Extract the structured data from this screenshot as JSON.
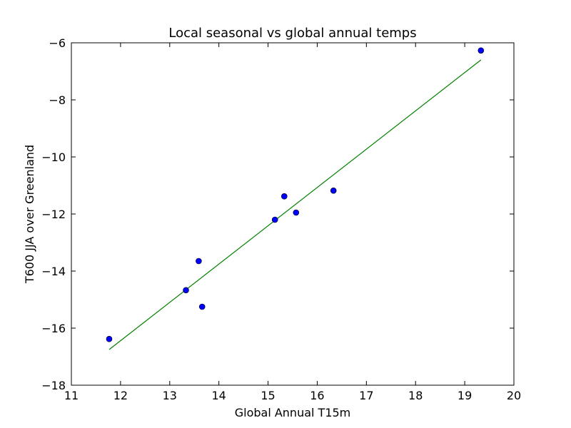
{
  "chart_data": {
    "type": "scatter",
    "title": "Local seasonal vs global annual temps",
    "xlabel": "Global Annual T15m",
    "ylabel": "T600 JJA over Greenland",
    "xlim": [
      11,
      20
    ],
    "ylim": [
      -18,
      -6
    ],
    "xticks": [
      11,
      12,
      13,
      14,
      15,
      16,
      17,
      18,
      19,
      20
    ],
    "yticks": [
      -18,
      -16,
      -14,
      -12,
      -10,
      -8,
      -6
    ],
    "xtick_labels": [
      "11",
      "12",
      "13",
      "14",
      "15",
      "16",
      "17",
      "18",
      "19",
      "20"
    ],
    "ytick_labels": [
      "−18",
      "−16",
      "−14",
      "−12",
      "−10",
      "−8",
      "−6"
    ],
    "grid": false,
    "legend": "none",
    "points": [
      {
        "x": 11.77,
        "y": -16.38
      },
      {
        "x": 13.33,
        "y": -14.67
      },
      {
        "x": 13.59,
        "y": -13.65
      },
      {
        "x": 13.66,
        "y": -15.25
      },
      {
        "x": 15.14,
        "y": -12.2
      },
      {
        "x": 15.33,
        "y": -11.38
      },
      {
        "x": 15.57,
        "y": -11.95
      },
      {
        "x": 16.33,
        "y": -11.18
      },
      {
        "x": 19.33,
        "y": -6.27
      }
    ],
    "fit_line": {
      "x": [
        11.77,
        19.33
      ],
      "y": [
        -16.75,
        -6.6
      ]
    },
    "colors": {
      "points": "#0000ff",
      "fit_line": "#008000",
      "axes": "#000000"
    }
  }
}
